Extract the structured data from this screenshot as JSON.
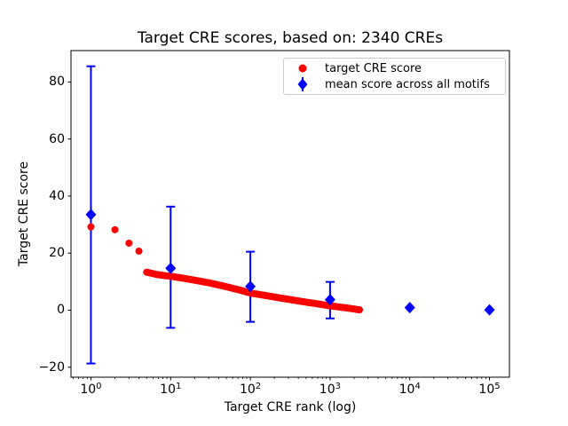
{
  "chart_data": {
    "type": "scatter",
    "title": "Target CRE scores, based on: 2340 CREs",
    "xlabel": "Target CRE rank (log)",
    "ylabel": "Target CRE score",
    "x_scale": "log",
    "xlim_log10": [
      -0.25,
      5.25
    ],
    "ylim": [
      -23.5,
      91
    ],
    "x_tick_exponents": [
      0,
      1,
      2,
      3,
      4,
      5
    ],
    "y_ticks": [
      -20,
      0,
      20,
      40,
      60,
      80
    ],
    "grid": false,
    "legend_position": "upper right",
    "background": "#ffffff",
    "axis_color": "#000000",
    "series": [
      {
        "name": "target CRE score",
        "type": "scatter",
        "marker": "circle",
        "color": "#ff0000",
        "note": "2340 CRE ranks form a dense monotonically decreasing band; anchor points (rank, score) estimated from pixels, band log-interpolated from rank 5 to max_rank",
        "points": [
          [
            1,
            29.2
          ],
          [
            2,
            28.2
          ],
          [
            3,
            23.5
          ],
          [
            4,
            20.7
          ],
          [
            5,
            13.3
          ],
          [
            6,
            12.8
          ],
          [
            7,
            12.4
          ],
          [
            8,
            12.2
          ],
          [
            9,
            12.0
          ],
          [
            10,
            11.9
          ],
          [
            15,
            11.1
          ],
          [
            20,
            10.5
          ],
          [
            30,
            9.6
          ],
          [
            50,
            8.2
          ],
          [
            70,
            7.2
          ],
          [
            100,
            6.0
          ],
          [
            150,
            5.2
          ],
          [
            200,
            4.6
          ],
          [
            300,
            3.8
          ],
          [
            500,
            2.8
          ],
          [
            700,
            2.2
          ],
          [
            1000,
            1.5
          ],
          [
            1500,
            0.9
          ],
          [
            2000,
            0.4
          ],
          [
            2340,
            0.1
          ]
        ],
        "dense_from_rank": 5,
        "max_rank": 2340
      },
      {
        "name": "mean score across all motifs",
        "type": "errorbar",
        "marker": "diamond",
        "color": "#0000ff",
        "points": [
          {
            "x": 1,
            "y": 33.5,
            "lo": -18.7,
            "hi": 85.5
          },
          {
            "x": 10,
            "y": 14.7,
            "lo": -6.2,
            "hi": 36.3
          },
          {
            "x": 100,
            "y": 8.3,
            "lo": -4.1,
            "hi": 20.5
          },
          {
            "x": 1000,
            "y": 3.7,
            "lo": -2.9,
            "hi": 9.9
          },
          {
            "x": 10000,
            "y": 0.9,
            "lo": 0.9,
            "hi": 0.9
          },
          {
            "x": 100000,
            "y": 0.1,
            "lo": 0.1,
            "hi": 0.1
          }
        ]
      }
    ]
  }
}
